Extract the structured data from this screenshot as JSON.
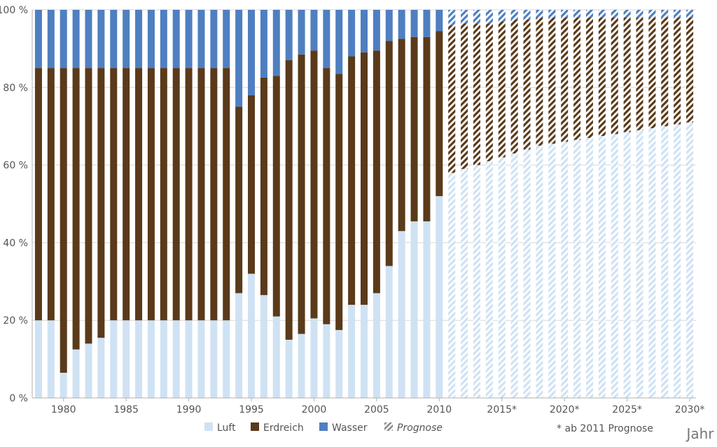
{
  "chart_data": {
    "type": "bar",
    "stacked": true,
    "normalized": true,
    "x": [
      "1978",
      "1979",
      "1980",
      "1981",
      "1982",
      "1983",
      "1984",
      "1985",
      "1986",
      "1987",
      "1988",
      "1989",
      "1990",
      "1991",
      "1992",
      "1993",
      "1994",
      "1995",
      "1996",
      "1997",
      "1998",
      "1999",
      "2000",
      "2001",
      "2002",
      "2003",
      "2004",
      "2005",
      "2006",
      "2007",
      "2008",
      "2009",
      "2010",
      "2011",
      "2012",
      "2013",
      "2014",
      "2015",
      "2016",
      "2017",
      "2018",
      "2019",
      "2020",
      "2021",
      "2022",
      "2023",
      "2024",
      "2025",
      "2026",
      "2027",
      "2028",
      "2029",
      "2030"
    ],
    "xtick_labels": [
      {
        "x": "1980",
        "label": "1980"
      },
      {
        "x": "1985",
        "label": "1985"
      },
      {
        "x": "1990",
        "label": "1990"
      },
      {
        "x": "1995",
        "label": "1995"
      },
      {
        "x": "2000",
        "label": "2000"
      },
      {
        "x": "2005",
        "label": "2005"
      },
      {
        "x": "2010",
        "label": "2010"
      },
      {
        "x": "2015",
        "label": "2015*"
      },
      {
        "x": "2020",
        "label": "2020*"
      },
      {
        "x": "2025",
        "label": "2025*"
      },
      {
        "x": "2030",
        "label": "2030*"
      }
    ],
    "yticks": [
      0,
      20,
      40,
      60,
      80,
      100
    ],
    "ytick_labels": [
      "0 %",
      "20 %",
      "40 %",
      "60 %",
      "80 %",
      "100 %"
    ],
    "ylim": [
      0,
      100
    ],
    "xlabel": "Jahr",
    "ylabel": "",
    "prognosis_from": "2011",
    "series": [
      {
        "name": "Luft",
        "color": "#cfe2f3",
        "values": [
          20,
          20,
          6.5,
          12.5,
          14,
          15.5,
          20,
          20,
          20,
          20,
          20,
          20,
          20,
          20,
          20,
          20,
          27,
          32,
          26.5,
          21,
          15,
          16.5,
          20.5,
          19,
          17.5,
          24,
          24,
          27,
          34,
          43,
          45.5,
          45.5,
          52,
          58,
          59,
          60,
          61,
          62,
          63,
          64,
          65,
          65.5,
          66,
          66.5,
          67,
          67.5,
          68,
          68.5,
          69,
          69.5,
          70,
          70.5,
          71
        ]
      },
      {
        "name": "Erdreich",
        "color": "#5a3a1a",
        "values": [
          65,
          65,
          78.5,
          72.5,
          71,
          69.5,
          65,
          65,
          65,
          65,
          65,
          65,
          65,
          65,
          65,
          65,
          48,
          46,
          56,
          62,
          72,
          72,
          69,
          66,
          66,
          64,
          65,
          62.5,
          58,
          49.5,
          47.5,
          47.5,
          42.5,
          38,
          37.5,
          36.5,
          35.5,
          35,
          34.5,
          33.5,
          33,
          32.5,
          32,
          31.5,
          31,
          30.5,
          30,
          29.5,
          29,
          28.5,
          28,
          27.5,
          27
        ]
      },
      {
        "name": "Wasser",
        "color": "#4f7fc0",
        "values": [
          15,
          15,
          15,
          15,
          15,
          15,
          15,
          15,
          15,
          15,
          15,
          15,
          15,
          15,
          15,
          15,
          25,
          22,
          17.5,
          17,
          13,
          11.5,
          10.5,
          15,
          16.5,
          12,
          11,
          10.5,
          8,
          7.5,
          7,
          7,
          5.5,
          4,
          3.5,
          3.5,
          3.5,
          3,
          2.5,
          2.5,
          2,
          2,
          2,
          2,
          2,
          2,
          2,
          2,
          2,
          2,
          2,
          2,
          2
        ]
      }
    ],
    "legend": {
      "position": "bottom",
      "items": [
        "Luft",
        "Erdreich",
        "Wasser",
        "Prognose"
      ]
    },
    "annotation": "* ab 2011 Prognose",
    "grid": {
      "horizontal": true,
      "vertical": false
    }
  }
}
